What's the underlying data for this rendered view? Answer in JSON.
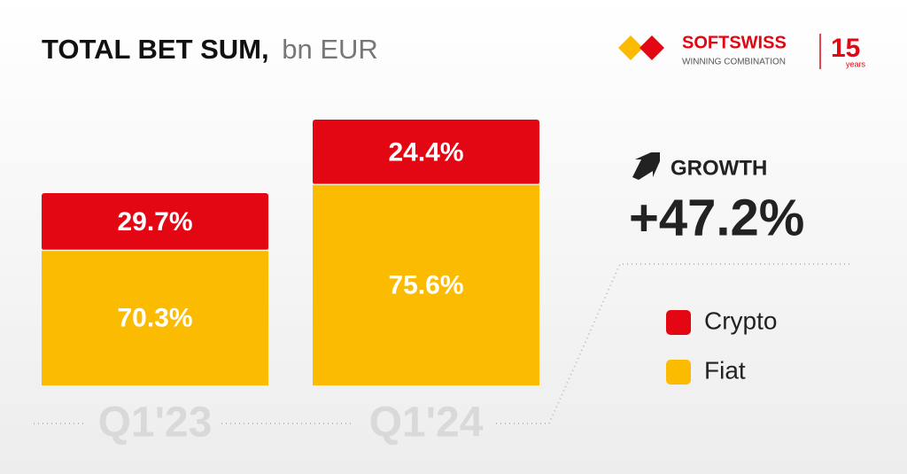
{
  "chart_data": {
    "type": "stacked_bar",
    "title": "TOTAL BET SUM,",
    "subtitle": "bn EUR",
    "categories": [
      "Q1'23",
      "Q1'24"
    ],
    "series": [
      {
        "name": "Crypto",
        "color": "#e30613",
        "values": [
          29.7,
          24.4
        ],
        "value_labels": [
          "29.7%",
          "24.4%"
        ]
      },
      {
        "name": "Fiat",
        "color": "#fbbb00",
        "values": [
          70.3,
          75.6
        ],
        "value_labels": [
          "70.3%",
          "75.6%"
        ]
      }
    ],
    "annotations": [
      "GROWTH",
      "+47.2%"
    ]
  },
  "logo": {
    "brand": "SOFTSWISS",
    "tagline": "WINNING COMBINATION",
    "anniversary": "15",
    "anniversary_unit": "years"
  }
}
